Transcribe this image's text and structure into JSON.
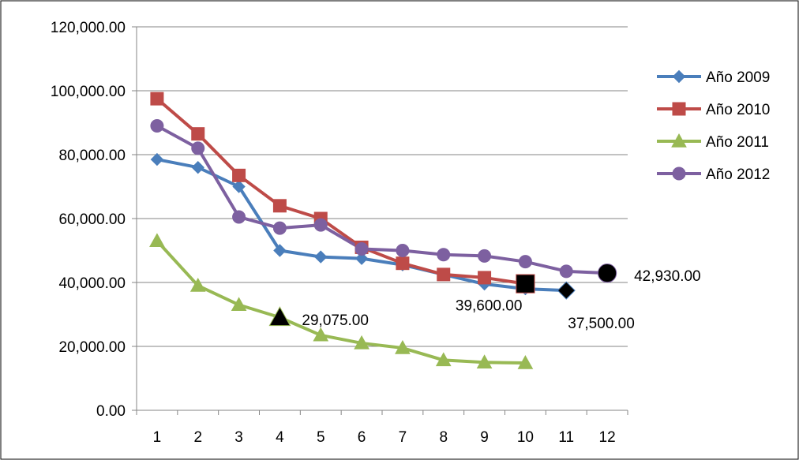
{
  "chart_data": {
    "type": "line",
    "title": "",
    "xlabel": "",
    "ylabel": "",
    "categories": [
      "1",
      "2",
      "3",
      "4",
      "5",
      "6",
      "7",
      "8",
      "9",
      "10",
      "11",
      "12"
    ],
    "ylim": [
      0,
      120000
    ],
    "y_ticks": [
      "0.00",
      "20,000.00",
      "40,000.00",
      "60,000.00",
      "80,000.00",
      "100,000.00",
      "120,000.00"
    ],
    "y_tick_values": [
      0,
      20000,
      40000,
      60000,
      80000,
      100000,
      120000
    ],
    "grid": "horizontal",
    "legend_position": "right",
    "series": [
      {
        "name": "Año 2009",
        "color": "#4a7ebb",
        "marker": "diamond",
        "values": [
          78500,
          76000,
          70000,
          50000,
          48000,
          47500,
          45500,
          42500,
          39500,
          38000,
          37500,
          null
        ]
      },
      {
        "name": "Año 2010",
        "color": "#be4b48",
        "marker": "square",
        "values": [
          97500,
          86500,
          73500,
          64000,
          60000,
          51000,
          46000,
          42500,
          41500,
          39600,
          null,
          null
        ]
      },
      {
        "name": "Año 2011",
        "color": "#98b954",
        "marker": "triangle",
        "values": [
          53000,
          39000,
          33000,
          29075,
          23500,
          21000,
          19500,
          15700,
          15000,
          14800,
          null,
          null
        ]
      },
      {
        "name": "Año 2012",
        "color": "#7d60a0",
        "marker": "circle",
        "values": [
          89000,
          82000,
          60500,
          57000,
          58000,
          50500,
          50000,
          48700,
          48300,
          46500,
          43500,
          42930
        ]
      }
    ],
    "annotations": [
      {
        "series": 2,
        "index": 3,
        "label": "29,075.00",
        "marker_color": "#000000"
      },
      {
        "series": 1,
        "index": 9,
        "label": "39,600.00",
        "marker_color": "#000000"
      },
      {
        "series": 0,
        "index": 10,
        "label": "37,500.00",
        "marker_color": "#000000"
      },
      {
        "series": 3,
        "index": 11,
        "label": "42,930.00",
        "marker_color": "#000000"
      }
    ]
  }
}
